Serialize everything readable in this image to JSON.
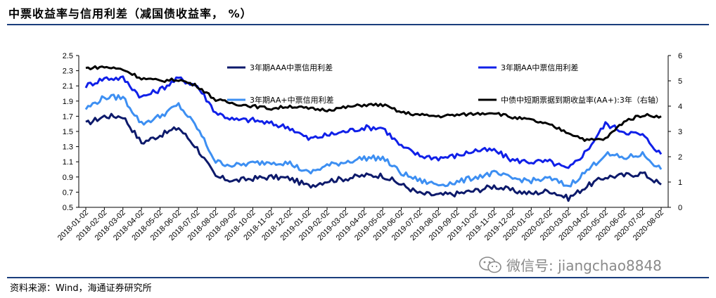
{
  "header": {
    "title": "中票收益率与信用利差（减国债收益率，  %）"
  },
  "footer": {
    "source": "资料来源：Wind，海通证券研究所"
  },
  "watermark": {
    "text": "微信号: jiangchao8848",
    "icon": "wechat-icon"
  },
  "colors": {
    "aaa": "#0d1a6b",
    "aa": "#1020e8",
    "aaplus": "#3d8ff2",
    "yield": "#000000",
    "rule": "#1a3d7c"
  },
  "chart_data": {
    "type": "line",
    "title": "中票收益率与信用利差（减国债收益率，  %）",
    "left_axis": {
      "min": 0.5,
      "max": 2.5,
      "ticks": [
        "2.5",
        "2.3",
        "2.1",
        "1.9",
        "1.7",
        "1.5",
        "1.3",
        "1.1",
        "0.9",
        "0.7",
        "0.5"
      ]
    },
    "right_axis": {
      "min": 0,
      "max": 6,
      "ticks": [
        "6",
        "5",
        "4",
        "3",
        "2",
        "1",
        "0"
      ]
    },
    "categories": [
      "2018-01-02",
      "2018-02-02",
      "2018-03-02",
      "2018-04-02",
      "2018-05-02",
      "2018-06-02",
      "2018-07-02",
      "2018-08-02",
      "2018-09-02",
      "2018-10-02",
      "2018-11-02",
      "2018-12-02",
      "2019-01-02",
      "2019-02-02",
      "2019-03-02",
      "2019-04-02",
      "2019-05-02",
      "2019-06-02",
      "2019-07-02",
      "2019-08-02",
      "2019-09-02",
      "2019-10-02",
      "2019-11-02",
      "2019-12-02",
      "2020-01-02",
      "2020-02-02",
      "2020-03-02",
      "2020-04-02",
      "2020-05-02",
      "2020-06-02",
      "2020-07-02",
      "2020-08-02"
    ],
    "series": [
      {
        "key": "aaa",
        "name": "3年期AAA中票信用利差",
        "axis": "left",
        "values": [
          1.6,
          1.7,
          1.7,
          1.35,
          1.45,
          1.55,
          1.28,
          0.9,
          0.85,
          0.88,
          0.9,
          0.88,
          0.78,
          0.85,
          0.88,
          0.92,
          0.92,
          0.8,
          0.68,
          0.66,
          0.68,
          0.72,
          0.78,
          0.72,
          0.68,
          0.72,
          0.62,
          0.78,
          0.9,
          0.92,
          0.95,
          0.8
        ]
      },
      {
        "key": "aa",
        "name": "3年期AA中票信用利差",
        "axis": "left",
        "values": [
          2.1,
          2.2,
          2.2,
          1.95,
          2.05,
          2.2,
          2.1,
          1.75,
          1.65,
          1.65,
          1.6,
          1.55,
          1.4,
          1.45,
          1.5,
          1.55,
          1.55,
          1.3,
          1.18,
          1.15,
          1.18,
          1.25,
          1.25,
          1.12,
          1.1,
          1.1,
          1.0,
          1.25,
          1.6,
          1.5,
          1.45,
          1.2
        ]
      },
      {
        "key": "aaplus",
        "name": "3年期AA+中票信用利差",
        "axis": "left",
        "values": [
          1.8,
          1.95,
          1.95,
          1.6,
          1.7,
          1.85,
          1.55,
          1.1,
          1.05,
          1.08,
          1.1,
          1.08,
          0.95,
          1.05,
          1.1,
          1.15,
          1.15,
          0.95,
          0.85,
          0.8,
          0.83,
          0.9,
          0.95,
          0.88,
          0.85,
          0.88,
          0.78,
          0.98,
          1.2,
          1.15,
          1.2,
          1.0
        ]
      },
      {
        "key": "yield",
        "name": "中债中短期票据到期收益率(AA+):3年（右轴）",
        "axis": "right",
        "values": [
          5.5,
          5.55,
          5.45,
          5.1,
          5.0,
          5.05,
          4.8,
          4.25,
          4.1,
          4.0,
          3.9,
          4.0,
          3.9,
          3.85,
          3.95,
          4.05,
          4.05,
          3.75,
          3.65,
          3.6,
          3.65,
          3.7,
          3.75,
          3.55,
          3.45,
          3.25,
          2.95,
          2.65,
          2.7,
          3.4,
          3.65,
          3.6
        ]
      }
    ],
    "legend": [
      "3年期AAA中票信用利差",
      "3年期AA中票信用利差",
      "3年期AA+中票信用利差",
      "中债中短期票据到期收益率(AA+):3年（右轴）"
    ]
  }
}
